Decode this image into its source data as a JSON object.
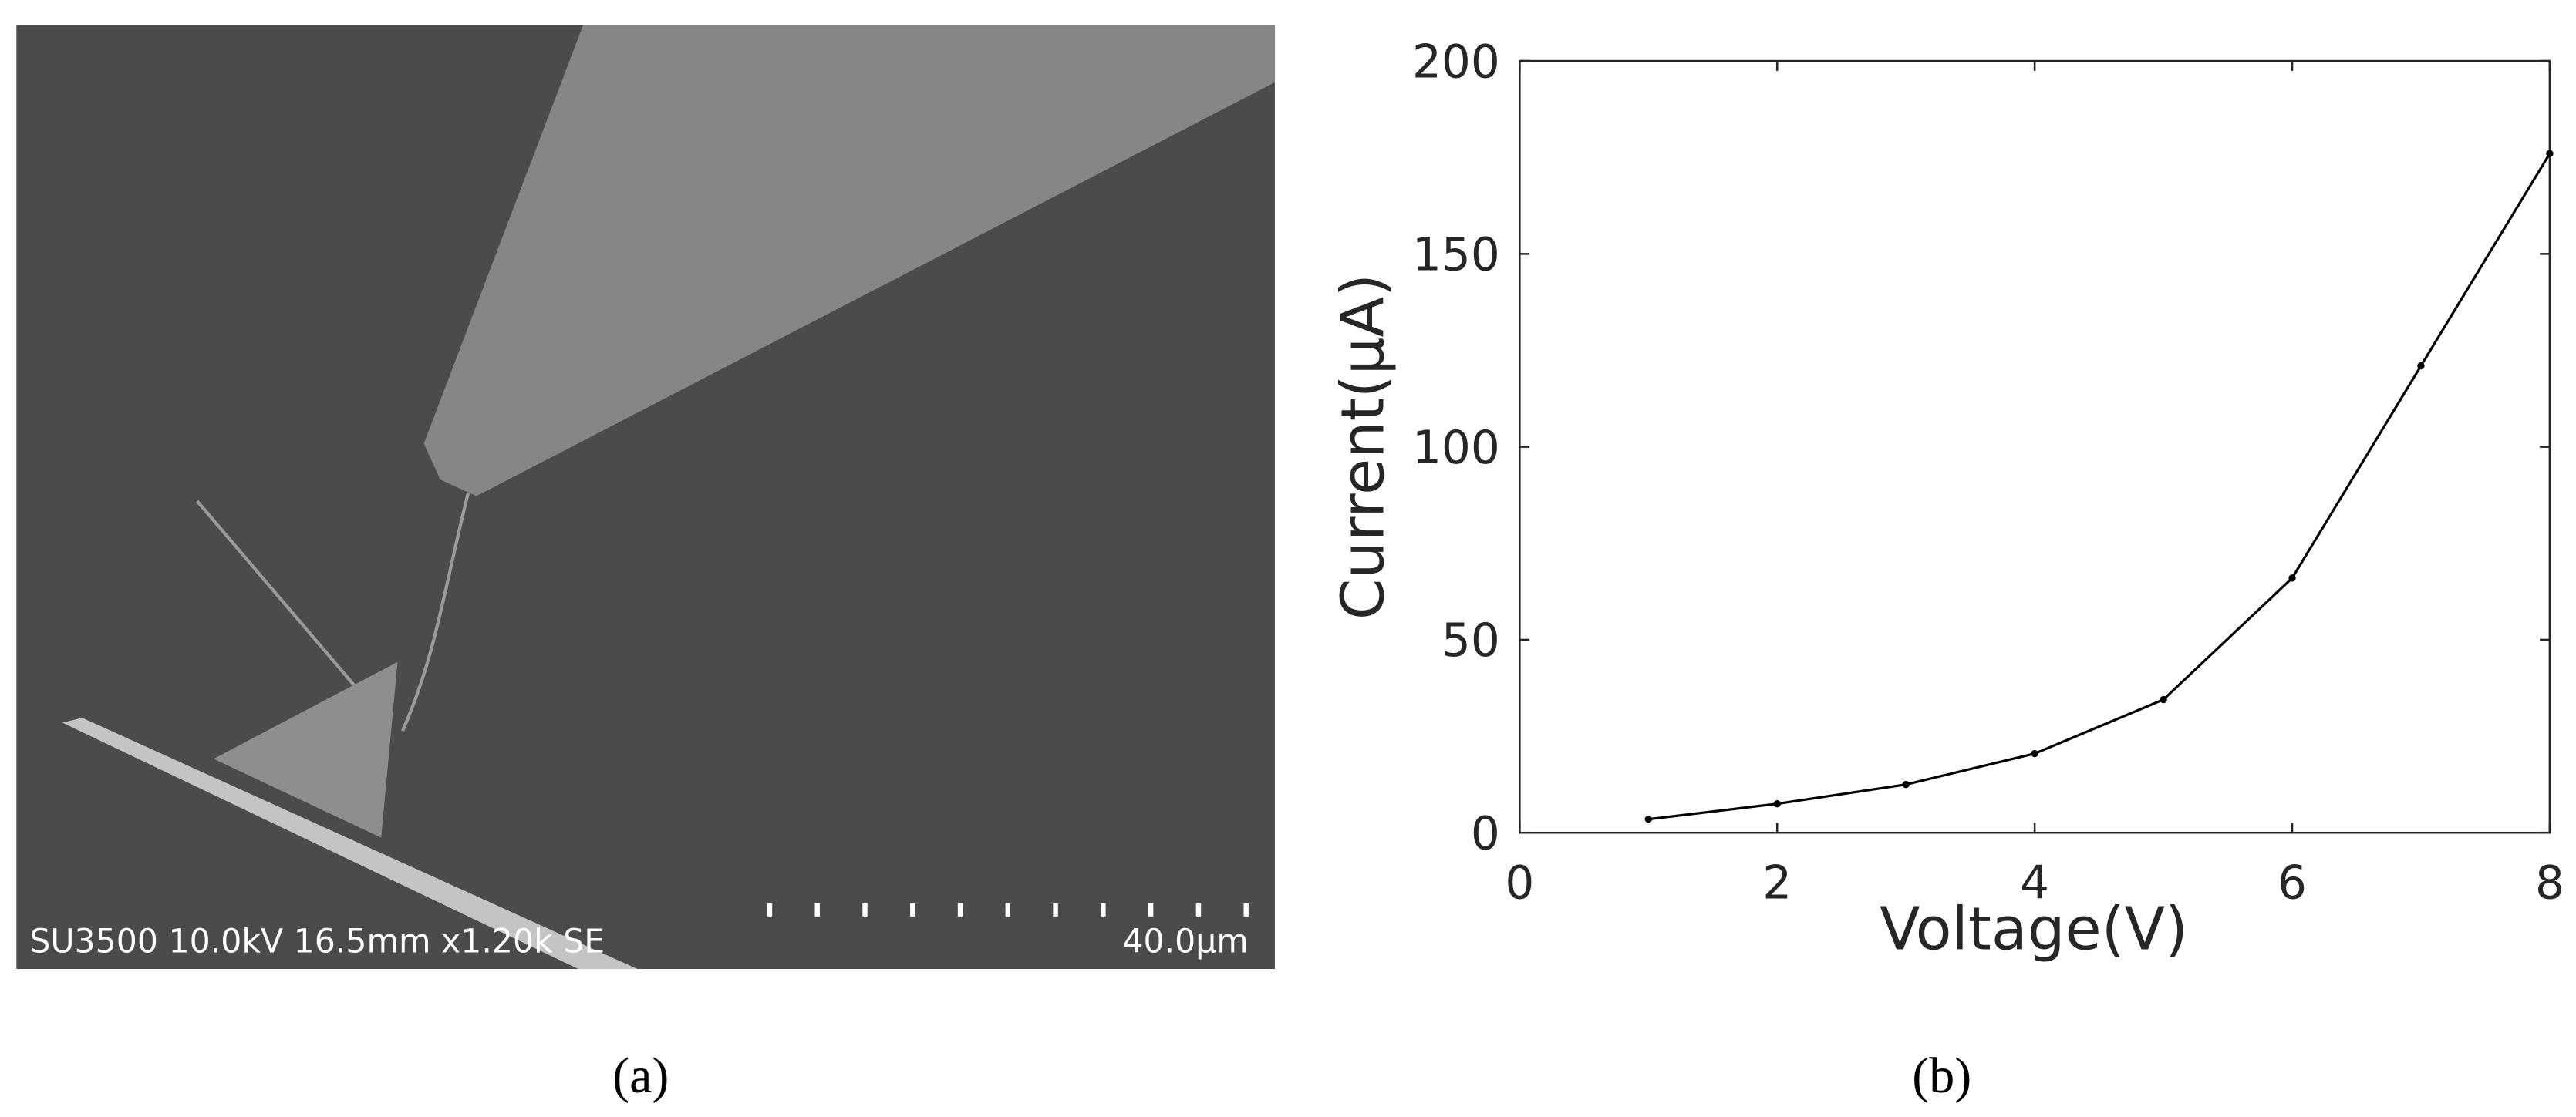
{
  "panel_a": {
    "info": "SU3500 10.0kV 16.5mm x1.20k SE",
    "scale_bar": "40.0μm",
    "caption": "(a)"
  },
  "chart_data": {
    "type": "line",
    "caption": "(b)",
    "x_label": "Voltage(V)",
    "y_label": "Current(μA)",
    "x": [
      1,
      2,
      3,
      4,
      5,
      6,
      7,
      8
    ],
    "values": [
      3.5,
      7.5,
      12.5,
      20.5,
      34.5,
      66,
      121,
      176
    ],
    "color": "#000000",
    "xlim": [
      0,
      8
    ],
    "xticks": [
      0,
      2,
      4,
      6,
      8
    ],
    "ylim": [
      0,
      200
    ],
    "yticks": [
      0,
      50,
      100,
      150,
      200
    ],
    "grid": false
  }
}
